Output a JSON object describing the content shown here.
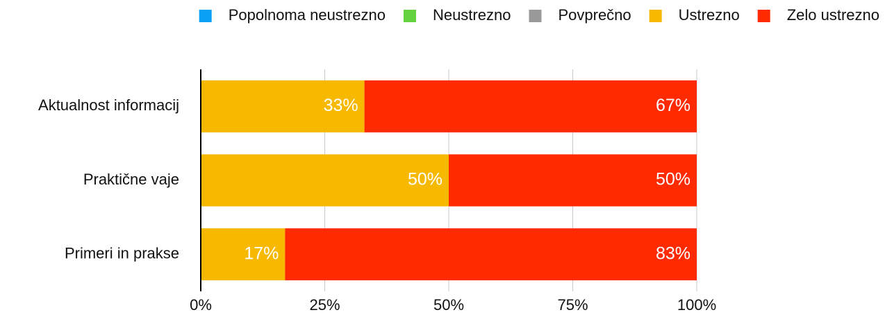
{
  "chart_data": {
    "type": "stacked-bar-horizontal",
    "categories": [
      "Aktualnost informacij",
      "Praktične vaje",
      "Primeri in prakse"
    ],
    "series": [
      {
        "name": "Popolnoma neustrezno",
        "color": "#0aa0f5",
        "values": [
          0,
          0,
          0
        ]
      },
      {
        "name": "Neustrezno",
        "color": "#63d23c",
        "values": [
          0,
          0,
          0
        ]
      },
      {
        "name": "Povprečno",
        "color": "#999999",
        "values": [
          0,
          0,
          0
        ]
      },
      {
        "name": "Ustrezno",
        "color": "#f6b900",
        "values": [
          33,
          50,
          17
        ],
        "value_labels": [
          "33%",
          "50%",
          "17%"
        ]
      },
      {
        "name": "Zelo ustrezno",
        "color": "#ff2a00",
        "values": [
          67,
          50,
          83
        ],
        "value_labels": [
          "67%",
          "50%",
          "83%"
        ]
      }
    ],
    "xlim": [
      0,
      100
    ],
    "xticks": [
      {
        "value": 0,
        "label": "0%"
      },
      {
        "value": 25,
        "label": "25%"
      },
      {
        "value": 50,
        "label": "50%"
      },
      {
        "value": 75,
        "label": "75%"
      },
      {
        "value": 100,
        "label": "100%"
      }
    ],
    "grid": true,
    "legend": "top"
  }
}
